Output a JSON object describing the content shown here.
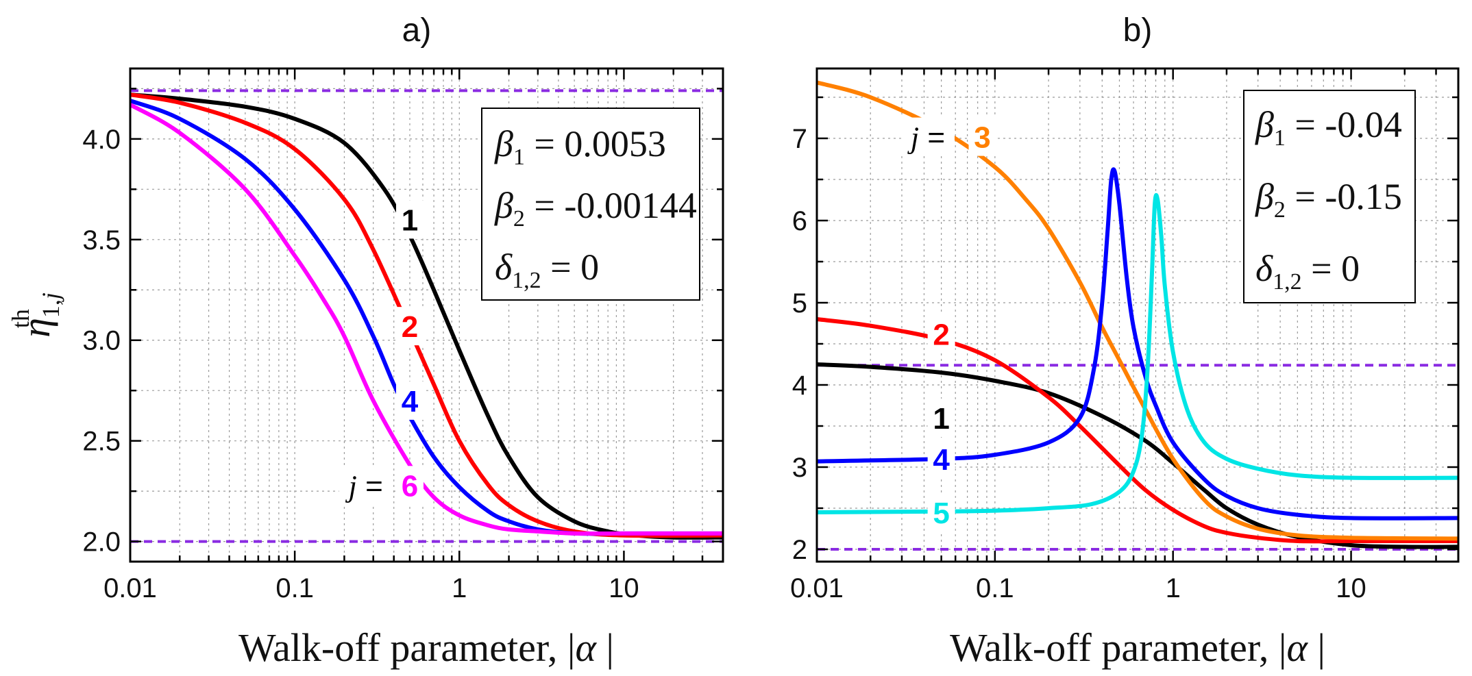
{
  "chart_data": [
    {
      "type": "line",
      "title": "a)",
      "xlabel": "Walk-off parameter, |α|",
      "ylabel": "η1,j th",
      "ylabel_main": "η",
      "ylabel_sub": "1,j",
      "ylabel_sup": "th",
      "xscale": "log",
      "xlim": [
        0.01,
        40
      ],
      "ylim": [
        1.9,
        4.35
      ],
      "grid": true,
      "xticks": [
        0.01,
        0.1,
        1,
        10
      ],
      "xtick_labels": [
        "0.01",
        "0.1",
        "1",
        "10"
      ],
      "yticks": [
        2.0,
        2.5,
        3.0,
        3.5,
        4.0
      ],
      "ytick_labels": [
        "2.0",
        "2.5",
        "3.0",
        "3.5",
        "4.0"
      ],
      "reference_lines": [
        4.24,
        2.0
      ],
      "series": [
        {
          "name": "1",
          "color": "#000000",
          "x": [
            0.01,
            0.02,
            0.05,
            0.1,
            0.2,
            0.35,
            0.5,
            0.7,
            1,
            1.5,
            2,
            3,
            5,
            8,
            12,
            20,
            40
          ],
          "y": [
            4.22,
            4.2,
            4.16,
            4.1,
            3.98,
            3.75,
            3.52,
            3.25,
            2.95,
            2.62,
            2.42,
            2.22,
            2.1,
            2.05,
            2.03,
            2.02,
            2.02
          ]
        },
        {
          "name": "2",
          "color": "#ff0000",
          "x": [
            0.01,
            0.02,
            0.05,
            0.1,
            0.2,
            0.3,
            0.5,
            0.7,
            1,
            1.5,
            2,
            3,
            5,
            10,
            40
          ],
          "y": [
            4.22,
            4.18,
            4.08,
            3.95,
            3.7,
            3.45,
            3.05,
            2.78,
            2.5,
            2.28,
            2.18,
            2.1,
            2.05,
            2.03,
            2.03
          ]
        },
        {
          "name": "4",
          "color": "#0000ff",
          "x": [
            0.01,
            0.02,
            0.05,
            0.1,
            0.2,
            0.3,
            0.4,
            0.5,
            0.7,
            1,
            1.5,
            2,
            3,
            5,
            10,
            40
          ],
          "y": [
            4.19,
            4.1,
            3.9,
            3.65,
            3.3,
            3.02,
            2.78,
            2.62,
            2.42,
            2.27,
            2.15,
            2.1,
            2.06,
            2.04,
            2.04,
            2.04
          ]
        },
        {
          "name": "6",
          "color": "#ff00ff",
          "x": [
            0.01,
            0.02,
            0.05,
            0.1,
            0.15,
            0.2,
            0.3,
            0.5,
            0.7,
            1,
            1.5,
            2,
            3,
            5,
            10,
            40
          ],
          "y": [
            4.17,
            4.03,
            3.75,
            3.42,
            3.2,
            3.02,
            2.7,
            2.38,
            2.22,
            2.13,
            2.08,
            2.06,
            2.05,
            2.04,
            2.04,
            2.04
          ]
        }
      ],
      "curve_labels": [
        {
          "text": "1",
          "color": "#000000",
          "x": 0.5,
          "y": 3.6
        },
        {
          "text": "2",
          "color": "#ff0000",
          "x": 0.5,
          "y": 3.07
        },
        {
          "text": "4",
          "color": "#0000ff",
          "x": 0.5,
          "y": 2.7
        },
        {
          "text": "j = ",
          "color": "#000000",
          "x": 0.27,
          "y": 2.28
        },
        {
          "text": "6",
          "color": "#ff00ff",
          "x": 0.5,
          "y": 2.28
        }
      ],
      "legend": {
        "lines": [
          "β1 = 0.0053",
          "β2 = -0.00144",
          "δ1,2 = 0"
        ],
        "placement": "top-right"
      }
    },
    {
      "type": "line",
      "title": "b)",
      "xlabel": "Walk-off parameter, |α|",
      "xscale": "log",
      "xlim": [
        0.01,
        40
      ],
      "ylim": [
        1.85,
        7.85
      ],
      "grid": true,
      "xticks": [
        0.01,
        0.1,
        1,
        10
      ],
      "xtick_labels": [
        "0.01",
        "0.1",
        "1",
        "10"
      ],
      "yticks": [
        2,
        3,
        4,
        5,
        6,
        7
      ],
      "ytick_labels": [
        "2",
        "3",
        "4",
        "5",
        "6",
        "7"
      ],
      "reference_lines": [
        4.24,
        2.0
      ],
      "series": [
        {
          "name": "1",
          "color": "#000000",
          "x": [
            0.01,
            0.02,
            0.05,
            0.1,
            0.2,
            0.4,
            0.7,
            1,
            1.5,
            2,
            3,
            5,
            10,
            20,
            40
          ],
          "y": [
            4.25,
            4.22,
            4.15,
            4.05,
            3.9,
            3.62,
            3.32,
            3.05,
            2.72,
            2.5,
            2.3,
            2.15,
            2.05,
            2.03,
            2.03
          ]
        },
        {
          "name": "2",
          "color": "#ff0000",
          "x": [
            0.01,
            0.02,
            0.05,
            0.1,
            0.2,
            0.3,
            0.5,
            0.7,
            1,
            1.5,
            2,
            3,
            5,
            10,
            40
          ],
          "y": [
            4.8,
            4.72,
            4.55,
            4.3,
            3.85,
            3.5,
            3.02,
            2.72,
            2.48,
            2.28,
            2.2,
            2.14,
            2.1,
            2.1,
            2.1
          ]
        },
        {
          "name": "3",
          "color": "#ff8000",
          "x": [
            0.01,
            0.02,
            0.05,
            0.1,
            0.15,
            0.2,
            0.3,
            0.4,
            0.5,
            0.7,
            1,
            1.5,
            2,
            3,
            5,
            10,
            40
          ],
          "y": [
            7.68,
            7.5,
            7.1,
            6.65,
            6.25,
            5.9,
            5.25,
            4.7,
            4.3,
            3.7,
            3.1,
            2.6,
            2.4,
            2.25,
            2.17,
            2.14,
            2.13
          ]
        },
        {
          "name": "4",
          "color": "#0000ff",
          "x": [
            0.01,
            0.05,
            0.1,
            0.2,
            0.3,
            0.36,
            0.4,
            0.43,
            0.45,
            0.47,
            0.5,
            0.55,
            0.6,
            0.7,
            0.8,
            1,
            1.5,
            2,
            3,
            5,
            10,
            40
          ],
          "y": [
            3.07,
            3.1,
            3.15,
            3.3,
            3.6,
            4.2,
            5.0,
            5.9,
            6.5,
            6.6,
            6.2,
            5.3,
            4.7,
            4.1,
            3.75,
            3.3,
            2.85,
            2.65,
            2.5,
            2.42,
            2.38,
            2.38
          ]
        },
        {
          "name": "5",
          "color": "#00e5e5",
          "x": [
            0.01,
            0.05,
            0.1,
            0.2,
            0.35,
            0.5,
            0.6,
            0.67,
            0.72,
            0.76,
            0.79,
            0.82,
            0.86,
            0.9,
            1,
            1.2,
            1.5,
            2,
            3,
            5,
            10,
            40
          ],
          "y": [
            2.45,
            2.46,
            2.47,
            2.5,
            2.55,
            2.7,
            2.95,
            3.4,
            4.2,
            5.3,
            6.2,
            6.25,
            5.8,
            5.2,
            4.4,
            3.7,
            3.3,
            3.1,
            2.98,
            2.9,
            2.87,
            2.87
          ]
        }
      ],
      "curve_labels": [
        {
          "text": "j = ",
          "color": "#000000",
          "x": 0.042,
          "y": 7.02
        },
        {
          "text": "3",
          "color": "#ff8000",
          "x": 0.085,
          "y": 7.02
        },
        {
          "text": "2",
          "color": "#ff0000",
          "x": 0.05,
          "y": 4.62
        },
        {
          "text": "1",
          "color": "#000000",
          "x": 0.05,
          "y": 3.6
        },
        {
          "text": "4",
          "color": "#0000ff",
          "x": 0.05,
          "y": 3.1
        },
        {
          "text": "5",
          "color": "#00e5e5",
          "x": 0.05,
          "y": 2.45
        }
      ],
      "legend": {
        "lines": [
          "β1 = -0.04",
          "β2 = -0.15",
          "δ1,2 = 0"
        ],
        "placement": "top-right"
      }
    }
  ]
}
